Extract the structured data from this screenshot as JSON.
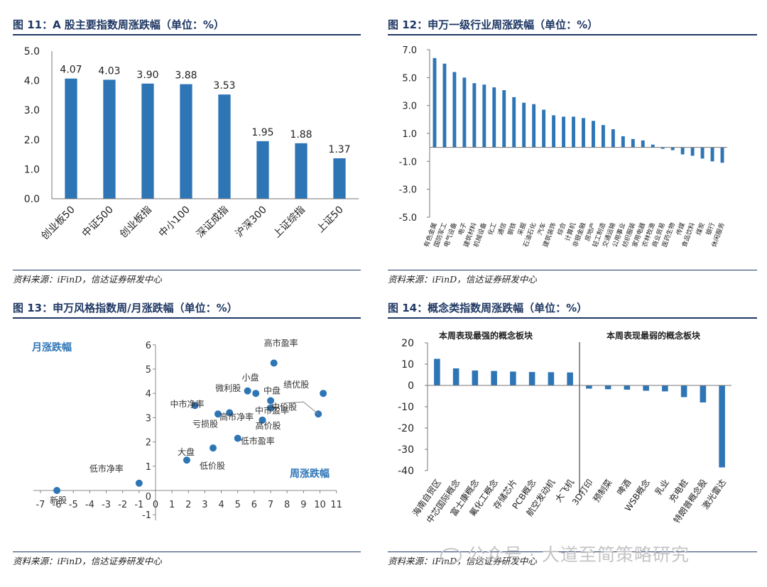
{
  "chart_data": [
    {
      "type": "bar",
      "title": "图 11：A 股主要指数周涨跌幅（单位：%）",
      "source": "资料来源：iFinD，信达证券研发中心",
      "categories": [
        "创业板50",
        "中证500",
        "创业板指",
        "中小100",
        "深证成指",
        "沪深300",
        "上证综指",
        "上证50"
      ],
      "values": [
        4.07,
        4.03,
        3.9,
        3.88,
        3.53,
        1.95,
        1.88,
        1.37
      ],
      "value_labels": [
        "4.07",
        "4.03",
        "3.90",
        "3.88",
        "3.53",
        "1.95",
        "1.88",
        "1.37"
      ],
      "ylim": [
        0,
        5
      ],
      "yticks": [
        "0.0",
        "1.0",
        "2.0",
        "3.0",
        "4.0",
        "5.0"
      ],
      "bar_color": "#2e75b6",
      "grid": false
    },
    {
      "type": "bar",
      "title": "图 12：申万一级行业周涨跌幅（单位：%）",
      "source": "资料来源：iFinD，信达证券研发中心",
      "categories": [
        "有色金属",
        "国防军工",
        "电气设备",
        "电子",
        "建筑材料",
        "机械设备",
        "化工",
        "通信",
        "钢铁",
        "采掘",
        "石油石化",
        "汽车",
        "建筑装饰",
        "综合",
        "计算机",
        "非银金融",
        "房地产",
        "轻工制造",
        "交通运输",
        "公用事业",
        "纺织服装",
        "家用电器",
        "农林牧渔",
        "商业贸易",
        "医药生物",
        "传媒",
        "食品饮料",
        "煤炭",
        "银行",
        "休闲服务"
      ],
      "values": [
        6.4,
        6.0,
        5.4,
        5.0,
        4.6,
        4.5,
        4.3,
        4.1,
        3.6,
        3.2,
        3.1,
        2.7,
        2.3,
        2.2,
        2.2,
        2.1,
        1.9,
        1.6,
        1.3,
        0.8,
        0.6,
        0.5,
        0.2,
        -0.1,
        -0.2,
        -0.5,
        -0.6,
        -0.8,
        -1.0,
        -1.1
      ],
      "ylim": [
        -5,
        7
      ],
      "yticks": [
        "-5.0",
        "-3.0",
        "-1.0",
        "1.0",
        "3.0",
        "5.0",
        "7.0"
      ],
      "bar_color": "#2e75b6",
      "grid": false
    },
    {
      "type": "scatter",
      "title": "图 13：申万风格指数周/月涨跌幅（单位：%）",
      "source": "资料来源：iFinD，信达证券研发中心",
      "xlabel": "周涨跌幅",
      "ylabel": "月涨跌幅",
      "xlim": [
        -7,
        11
      ],
      "ylim": [
        -1,
        6
      ],
      "xticks": [
        "-7",
        "-6",
        "-5",
        "-4",
        "-3",
        "-2",
        "-1",
        "0",
        "1",
        "2",
        "3",
        "4",
        "5",
        "6",
        "7",
        "8",
        "9",
        "10",
        "11"
      ],
      "yticks": [
        "-1",
        "0",
        "1",
        "2",
        "3",
        "4",
        "5",
        "6"
      ],
      "points": [
        {
          "name": "高市盈率",
          "x": 7.2,
          "y": 5.25
        },
        {
          "name": "小盘",
          "x": 5.6,
          "y": 4.1
        },
        {
          "name": "微利股",
          "x": 6.1,
          "y": 4.0
        },
        {
          "name": "绩优股",
          "x": 10.2,
          "y": 4.0
        },
        {
          "name": "中盘",
          "x": 7.0,
          "y": 3.7
        },
        {
          "name": "中市盈率",
          "x": 7.0,
          "y": 3.4
        },
        {
          "name": "中市净率",
          "x": 2.4,
          "y": 3.5
        },
        {
          "name": "亏损股",
          "x": 3.8,
          "y": 3.15
        },
        {
          "name": "高市净率",
          "x": 4.5,
          "y": 3.2
        },
        {
          "name": "高价股",
          "x": 6.5,
          "y": 2.9
        },
        {
          "name": "低市盈率",
          "x": 5.0,
          "y": 2.15
        },
        {
          "name": "中价股",
          "x": 9.9,
          "y": 3.15
        },
        {
          "name": "大盘",
          "x": 3.5,
          "y": 1.75
        },
        {
          "name": "低价股",
          "x": 1.9,
          "y": 1.25
        },
        {
          "name": "低市净率",
          "x": -1.0,
          "y": 0.3
        },
        {
          "name": "新股",
          "x": -6.0,
          "y": 0.0
        }
      ],
      "point_color": "#2e75b6",
      "grid": false
    },
    {
      "type": "bar",
      "title": "图 14：概念类指数周涨跌幅（单位：%）",
      "source": "资料来源：iFinD，信达证券研发中心",
      "group_labels": [
        "本周表现最强的概念板块",
        "本周表现最弱的概念板块"
      ],
      "categories": [
        "海南自贸区",
        "中芯国际概念",
        "富士康概念",
        "氟化工概念",
        "存储芯片",
        "PCB概念",
        "航空发动机",
        "大飞机",
        "3D打印",
        "预制菜",
        "啤酒",
        "WSB概念",
        "乳业",
        "充电桩",
        "特朗普概念股",
        "激光雷达"
      ],
      "values": [
        12.5,
        8.0,
        7.0,
        6.8,
        6.5,
        6.3,
        6.2,
        6.1,
        -1.5,
        -1.8,
        -2.0,
        -2.5,
        -2.8,
        -5.5,
        -8.0,
        -38.5
      ],
      "ylim": [
        -40,
        20
      ],
      "yticks": [
        "-40",
        "-30",
        "-20",
        "-10",
        "0",
        "10",
        "20"
      ],
      "bar_color": "#2e75b6",
      "grid": false
    }
  ],
  "watermark": "公众号 · 大道至简策略研究"
}
